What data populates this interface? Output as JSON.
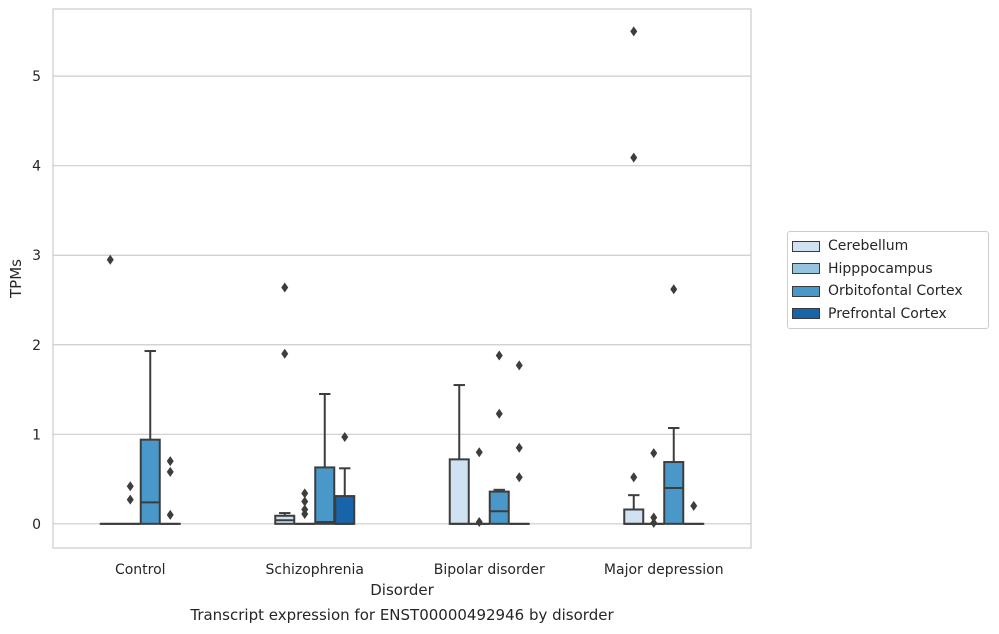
{
  "caption": "Transcript expression for ENST00000492946 by disorder",
  "legend": {
    "items": [
      {
        "label": "Cerebellum",
        "color": "#d0e1f2"
      },
      {
        "label": "Hipppocampus",
        "color": "#94c4df"
      },
      {
        "label": "Orbitofontal Cortex",
        "color": "#4a98c9"
      },
      {
        "label": "Prefrontal Cortex",
        "color": "#1764ab"
      }
    ]
  },
  "chart_data": {
    "type": "box",
    "xlabel": "Disorder",
    "ylabel": "TPMs",
    "ylim": [
      -0.27,
      5.75
    ],
    "yticks": [
      0,
      1,
      2,
      3,
      4,
      5
    ],
    "categories": [
      "Control",
      "Schizophrenia",
      "Bipolar disorder",
      "Major depression"
    ],
    "grid": true,
    "legend_position": "right",
    "series": [
      {
        "name": "Cerebellum",
        "color": "#d0e1f2",
        "boxes": [
          {
            "q1": 0,
            "median": 0,
            "q3": 0,
            "whisker_low": 0,
            "whisker_high": 0,
            "outliers": [
              2.95
            ]
          },
          {
            "q1": 0,
            "median": 0.04,
            "q3": 0.09,
            "whisker_low": 0,
            "whisker_high": 0.12,
            "outliers": [
              2.64,
              1.9
            ]
          },
          {
            "q1": 0,
            "median": 0,
            "q3": 0.72,
            "whisker_low": 0,
            "whisker_high": 1.55,
            "outliers": []
          },
          {
            "q1": 0,
            "median": 0,
            "q3": 0.16,
            "whisker_low": 0,
            "whisker_high": 0.32,
            "outliers": [
              5.5,
              4.09,
              0.52
            ]
          }
        ]
      },
      {
        "name": "Hipppocampus",
        "color": "#94c4df",
        "boxes": [
          {
            "q1": 0,
            "median": 0,
            "q3": 0,
            "whisker_low": 0,
            "whisker_high": 0,
            "outliers": [
              0.42,
              0.27
            ]
          },
          {
            "q1": 0,
            "median": 0,
            "q3": 0,
            "whisker_low": 0,
            "whisker_high": 0,
            "outliers": [
              0.25,
              0.34,
              0.16,
              0.11
            ]
          },
          {
            "q1": 0,
            "median": 0,
            "q3": 0,
            "whisker_low": 0,
            "whisker_high": 0,
            "outliers": [
              0.8,
              0.02
            ]
          },
          {
            "q1": 0,
            "median": 0,
            "q3": 0,
            "whisker_low": 0,
            "whisker_high": 0,
            "outliers": [
              0.79,
              0.07,
              0.01
            ]
          }
        ]
      },
      {
        "name": "Orbitofontal Cortex",
        "color": "#4a98c9",
        "boxes": [
          {
            "q1": 0,
            "median": 0.24,
            "q3": 0.94,
            "whisker_low": 0,
            "whisker_high": 1.93,
            "outliers": []
          },
          {
            "q1": 0,
            "median": 0.02,
            "q3": 0.63,
            "whisker_low": 0,
            "whisker_high": 1.45,
            "outliers": []
          },
          {
            "q1": 0,
            "median": 0.14,
            "q3": 0.36,
            "whisker_low": 0,
            "whisker_high": 0.38,
            "outliers": [
              1.88,
              1.23
            ]
          },
          {
            "q1": 0,
            "median": 0.4,
            "q3": 0.69,
            "whisker_low": 0,
            "whisker_high": 1.07,
            "outliers": [
              2.62
            ]
          }
        ]
      },
      {
        "name": "Prefrontal Cortex",
        "color": "#1764ab",
        "boxes": [
          {
            "q1": 0,
            "median": 0,
            "q3": 0,
            "whisker_low": 0,
            "whisker_high": 0,
            "outliers": [
              0.7,
              0.58,
              0.1
            ]
          },
          {
            "q1": 0,
            "median": 0,
            "q3": 0.31,
            "whisker_low": 0,
            "whisker_high": 0.62,
            "outliers": [
              0.97
            ]
          },
          {
            "q1": 0,
            "median": 0,
            "q3": 0,
            "whisker_low": 0,
            "whisker_high": 0,
            "outliers": [
              1.77,
              0.85,
              0.52
            ]
          },
          {
            "q1": 0,
            "median": 0,
            "q3": 0,
            "whisker_low": 0,
            "whisker_high": 0,
            "outliers": [
              0.2
            ]
          }
        ]
      }
    ]
  }
}
